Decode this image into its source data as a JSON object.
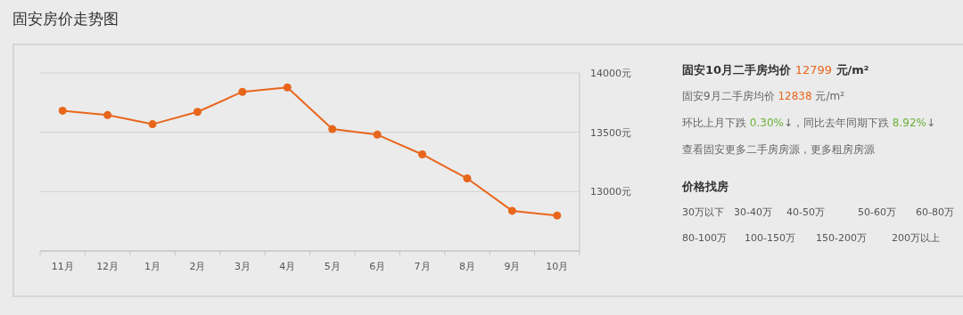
{
  "chart_data": [
    {
      "type": "line",
      "title": "固安房价走势图",
      "categories": [
        "11月",
        "12月",
        "1月",
        "2月",
        "3月",
        "4月",
        "5月",
        "6月",
        "7月",
        "8月",
        "9月",
        "10月"
      ],
      "series": [
        {
          "color": "#e8661c",
          "values": [
            13682,
            13645,
            13568,
            13672,
            13841,
            13878,
            13527,
            13480,
            13314,
            13111,
            12838,
            12799
          ]
        }
      ],
      "ylim": [
        12500,
        14000
      ],
      "yticks": [
        {
          "value": 13000,
          "label": "13000元"
        },
        {
          "value": 13500,
          "label": "13500元"
        },
        {
          "value": 14000,
          "label": "14000元"
        }
      ],
      "grid": "y",
      "marker": "circle",
      "line_style": "solid"
    },
    {
      "type": "other",
      "annotations": [
        "固安10月二手房均价 12799 元/m²",
        "固安9月二手房均价 12838 元/m²",
        "环比上月下跌 0.30%↓，同比去年同期下跌 8.92%↓",
        "查看固安更多二手房房源，更多租房房源",
        "价格找房",
        "30万以下",
        "30-40万",
        "40-50万",
        "50-60万",
        "60-80万",
        "80-100万",
        "100-150万",
        "150-200万",
        "200万以上"
      ]
    }
  ]
}
